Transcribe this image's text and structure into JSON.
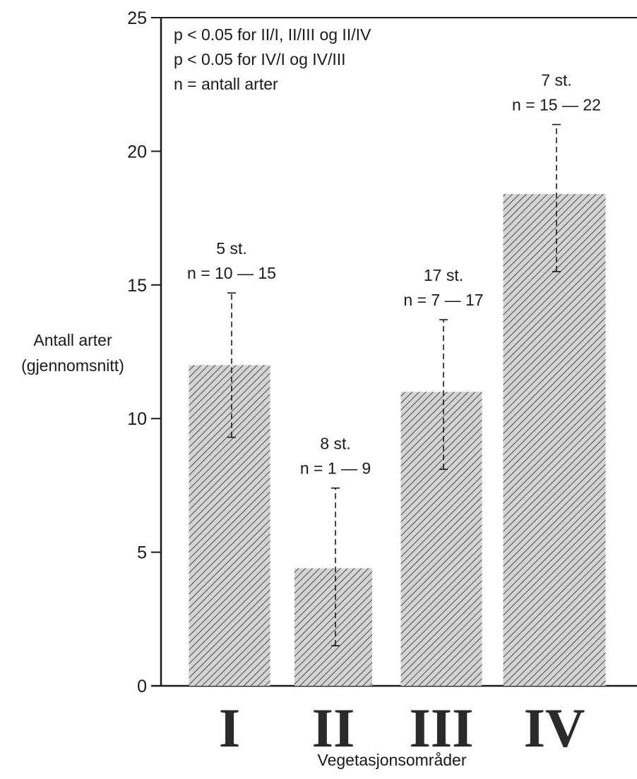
{
  "chart_data": {
    "type": "bar",
    "categories": [
      "I",
      "II",
      "III",
      "IV"
    ],
    "values": [
      12.0,
      4.4,
      11.0,
      18.4
    ],
    "error_ranges": [
      [
        9.3,
        14.7
      ],
      [
        1.5,
        7.4
      ],
      [
        8.1,
        13.7
      ],
      [
        15.5,
        21.0
      ]
    ],
    "bar_labels": [
      {
        "count": "5 st.",
        "range": "n = 10 — 15"
      },
      {
        "count": "8 st.",
        "range": "n = 1 — 9"
      },
      {
        "count": "17 st.",
        "range": "n = 7 — 17"
      },
      {
        "count": "7  st.",
        "range": "n = 15 — 22"
      }
    ],
    "legend_lines": [
      "p < 0.05 for II/I, II/III og II/IV",
      "p < 0.05 for IV/I og IV/III",
      "n = antall arter"
    ],
    "ylabel": [
      "Antall arter",
      "(gjennomsnitt)"
    ],
    "xlabel": "Vegetasjonsområder",
    "yticks": [
      0,
      5,
      10,
      15,
      20,
      25
    ],
    "ylim": [
      0,
      25
    ],
    "bar_fill": "hatched",
    "grid": false,
    "colors": {
      "ink": "#1a1a1a",
      "hatch": "#555555",
      "bar_bg": "#d9d9d9"
    }
  }
}
